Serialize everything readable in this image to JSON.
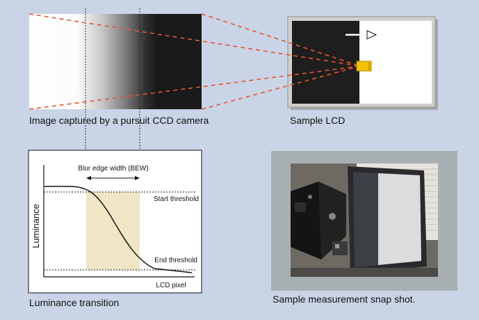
{
  "captions": {
    "ccd_image": "Image captured by a pursuit CCD camera",
    "sample_lcd": "Sample LCD",
    "luminance_transition": "Luminance transition",
    "snapshot": "Sample measurement snap shot."
  },
  "graph": {
    "ylabel": "Luminance",
    "xlabel": "LCD pixel",
    "bew_label": "Blur edge width (BEW)",
    "start_threshold": "Start threshold",
    "end_threshold": "End threshold"
  },
  "colors": {
    "background": "#c9d4e6",
    "projection_lines": "#e4572e",
    "bew_region": "#efe6c6",
    "camera_lens": "#f2c200",
    "lcd_bezel": "#d0cfcd",
    "photo_panel": "#a9b0b3"
  },
  "icons": {
    "motion_arrow": "arrow-right-icon",
    "camera": "camera-icon"
  }
}
